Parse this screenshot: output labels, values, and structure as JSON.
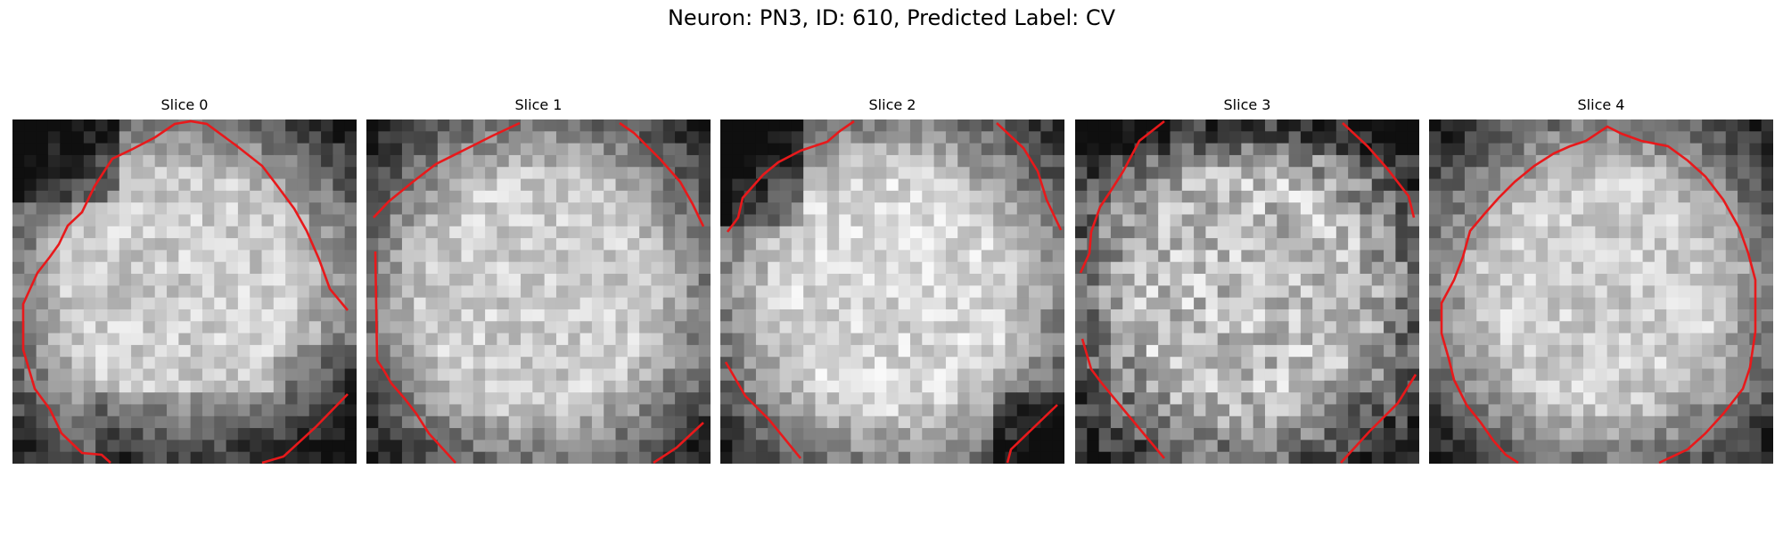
{
  "title": "Neuron: PN3, ID: 610, Predicted Label: CV",
  "panels": [
    {
      "title": "Slice 0"
    },
    {
      "title": "Slice 1"
    },
    {
      "title": "Slice 2"
    },
    {
      "title": "Slice 3"
    },
    {
      "title": "Slice 4"
    }
  ],
  "contour_color": "#e8191b",
  "colormap": "grayscale"
}
